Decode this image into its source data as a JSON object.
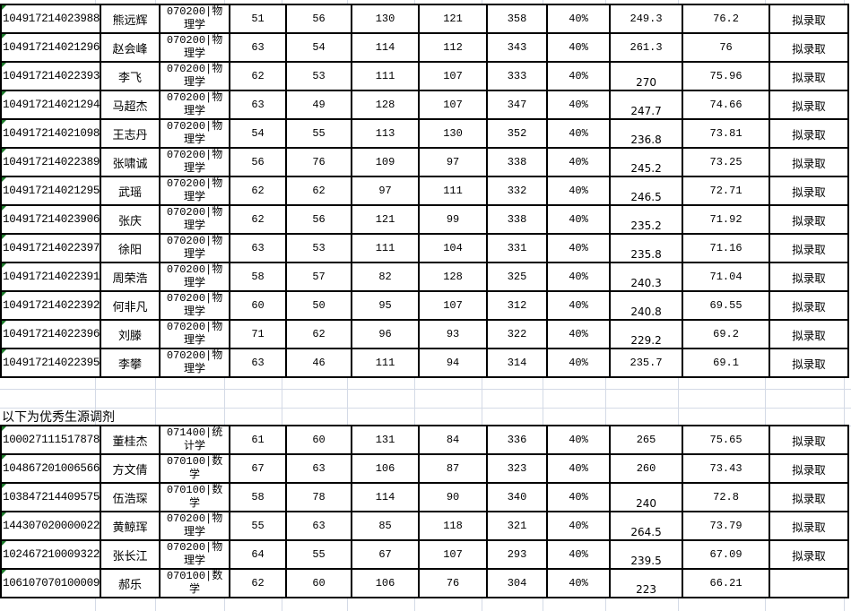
{
  "section_label": "以下为优秀生源调剂",
  "colors": {
    "border": "#000000",
    "gridline": "#d4dae6",
    "comment_marker": "#1c7a2a"
  },
  "table1": [
    {
      "id": "104917214023988",
      "name": "熊远辉",
      "major": "070200|物理学",
      "s1": "51",
      "s2": "56",
      "s3": "130",
      "s4": "121",
      "total": "358",
      "ratio": "40%",
      "weighted": "249.3",
      "final": "76.2",
      "status": "拟录取",
      "low": false
    },
    {
      "id": "104917214021296",
      "name": "赵会峰",
      "major": "070200|物理学",
      "s1": "63",
      "s2": "54",
      "s3": "114",
      "s4": "112",
      "total": "343",
      "ratio": "40%",
      "weighted": "261.3",
      "final": "76",
      "status": "拟录取",
      "low": false
    },
    {
      "id": "104917214022393",
      "name": "李飞",
      "major": "070200|物理学",
      "s1": "62",
      "s2": "53",
      "s3": "111",
      "s4": "107",
      "total": "333",
      "ratio": "40%",
      "weighted": "270",
      "final": "75.96",
      "status": "拟录取",
      "low": true
    },
    {
      "id": "104917214021294",
      "name": "马超杰",
      "major": "070200|物理学",
      "s1": "63",
      "s2": "49",
      "s3": "128",
      "s4": "107",
      "total": "347",
      "ratio": "40%",
      "weighted": "247.7",
      "final": "74.66",
      "status": "拟录取",
      "low": true
    },
    {
      "id": "104917214021098",
      "name": "王志丹",
      "major": "070200|物理学",
      "s1": "54",
      "s2": "55",
      "s3": "113",
      "s4": "130",
      "total": "352",
      "ratio": "40%",
      "weighted": "236.8",
      "final": "73.81",
      "status": "拟录取",
      "low": true
    },
    {
      "id": "104917214022389",
      "name": "张啸诚",
      "major": "070200|物理学",
      "s1": "56",
      "s2": "76",
      "s3": "109",
      "s4": "97",
      "total": "338",
      "ratio": "40%",
      "weighted": "245.2",
      "final": "73.25",
      "status": "拟录取",
      "low": true
    },
    {
      "id": "104917214021295",
      "name": "武瑶",
      "major": "070200|物理学",
      "s1": "62",
      "s2": "62",
      "s3": "97",
      "s4": "111",
      "total": "332",
      "ratio": "40%",
      "weighted": "246.5",
      "final": "72.71",
      "status": "拟录取",
      "low": true
    },
    {
      "id": "104917214023906",
      "name": "张庆",
      "major": "070200|物理学",
      "s1": "62",
      "s2": "56",
      "s3": "121",
      "s4": "99",
      "total": "338",
      "ratio": "40%",
      "weighted": "235.2",
      "final": "71.92",
      "status": "拟录取",
      "low": true
    },
    {
      "id": "104917214022397",
      "name": "徐阳",
      "major": "070200|物理学",
      "s1": "63",
      "s2": "53",
      "s3": "111",
      "s4": "104",
      "total": "331",
      "ratio": "40%",
      "weighted": "235.8",
      "final": "71.16",
      "status": "拟录取",
      "low": true
    },
    {
      "id": "104917214022391",
      "name": "周荣浩",
      "major": "070200|物理学",
      "s1": "58",
      "s2": "57",
      "s3": "82",
      "s4": "128",
      "total": "325",
      "ratio": "40%",
      "weighted": "240.3",
      "final": "71.04",
      "status": "拟录取",
      "low": true
    },
    {
      "id": "104917214022392",
      "name": "何非凡",
      "major": "070200|物理学",
      "s1": "60",
      "s2": "50",
      "s3": "95",
      "s4": "107",
      "total": "312",
      "ratio": "40%",
      "weighted": "240.8",
      "final": "69.55",
      "status": "拟录取",
      "low": true
    },
    {
      "id": "104917214022396",
      "name": "刘滕",
      "major": "070200|物理学",
      "s1": "71",
      "s2": "62",
      "s3": "96",
      "s4": "93",
      "total": "322",
      "ratio": "40%",
      "weighted": "229.2",
      "final": "69.2",
      "status": "拟录取",
      "low": true
    },
    {
      "id": "104917214022395",
      "name": "李攀",
      "major": "070200|物理学",
      "s1": "63",
      "s2": "46",
      "s3": "111",
      "s4": "94",
      "total": "314",
      "ratio": "40%",
      "weighted": "235.7",
      "final": "69.1",
      "status": "拟录取",
      "low": false
    }
  ],
  "table2": [
    {
      "id": "100027111517878",
      "name": "董桂杰",
      "major": "071400|统计学",
      "s1": "61",
      "s2": "60",
      "s3": "131",
      "s4": "84",
      "total": "336",
      "ratio": "40%",
      "weighted": "265",
      "final": "75.65",
      "status": "拟录取",
      "low": false
    },
    {
      "id": "104867201006566",
      "name": "方文倩",
      "major": "070100|数学",
      "s1": "67",
      "s2": "63",
      "s3": "106",
      "s4": "87",
      "total": "323",
      "ratio": "40%",
      "weighted": "260",
      "final": "73.43",
      "status": "拟录取",
      "low": false
    },
    {
      "id": "103847214409575",
      "name": "伍浩琛",
      "major": "070100|数学",
      "s1": "58",
      "s2": "78",
      "s3": "114",
      "s4": "90",
      "total": "340",
      "ratio": "40%",
      "weighted": "240",
      "final": "72.8",
      "status": "拟录取",
      "low": true
    },
    {
      "id": "144307020000022",
      "name": "黄鲸珲",
      "major": "070200|物理学",
      "s1": "55",
      "s2": "63",
      "s3": "85",
      "s4": "118",
      "total": "321",
      "ratio": "40%",
      "weighted": "264.5",
      "final": "73.79",
      "status": "拟录取",
      "low": true
    },
    {
      "id": "102467210009322",
      "name": "张长江",
      "major": "070200|物理学",
      "s1": "64",
      "s2": "55",
      "s3": "67",
      "s4": "107",
      "total": "293",
      "ratio": "40%",
      "weighted": "239.5",
      "final": "67.09",
      "status": "拟录取",
      "low": true
    },
    {
      "id": "106107070100009",
      "name": "郝乐",
      "major": "070100|数学",
      "s1": "62",
      "s2": "60",
      "s3": "106",
      "s4": "76",
      "total": "304",
      "ratio": "40%",
      "weighted": "223",
      "final": "66.21",
      "status": "",
      "low": true
    }
  ]
}
